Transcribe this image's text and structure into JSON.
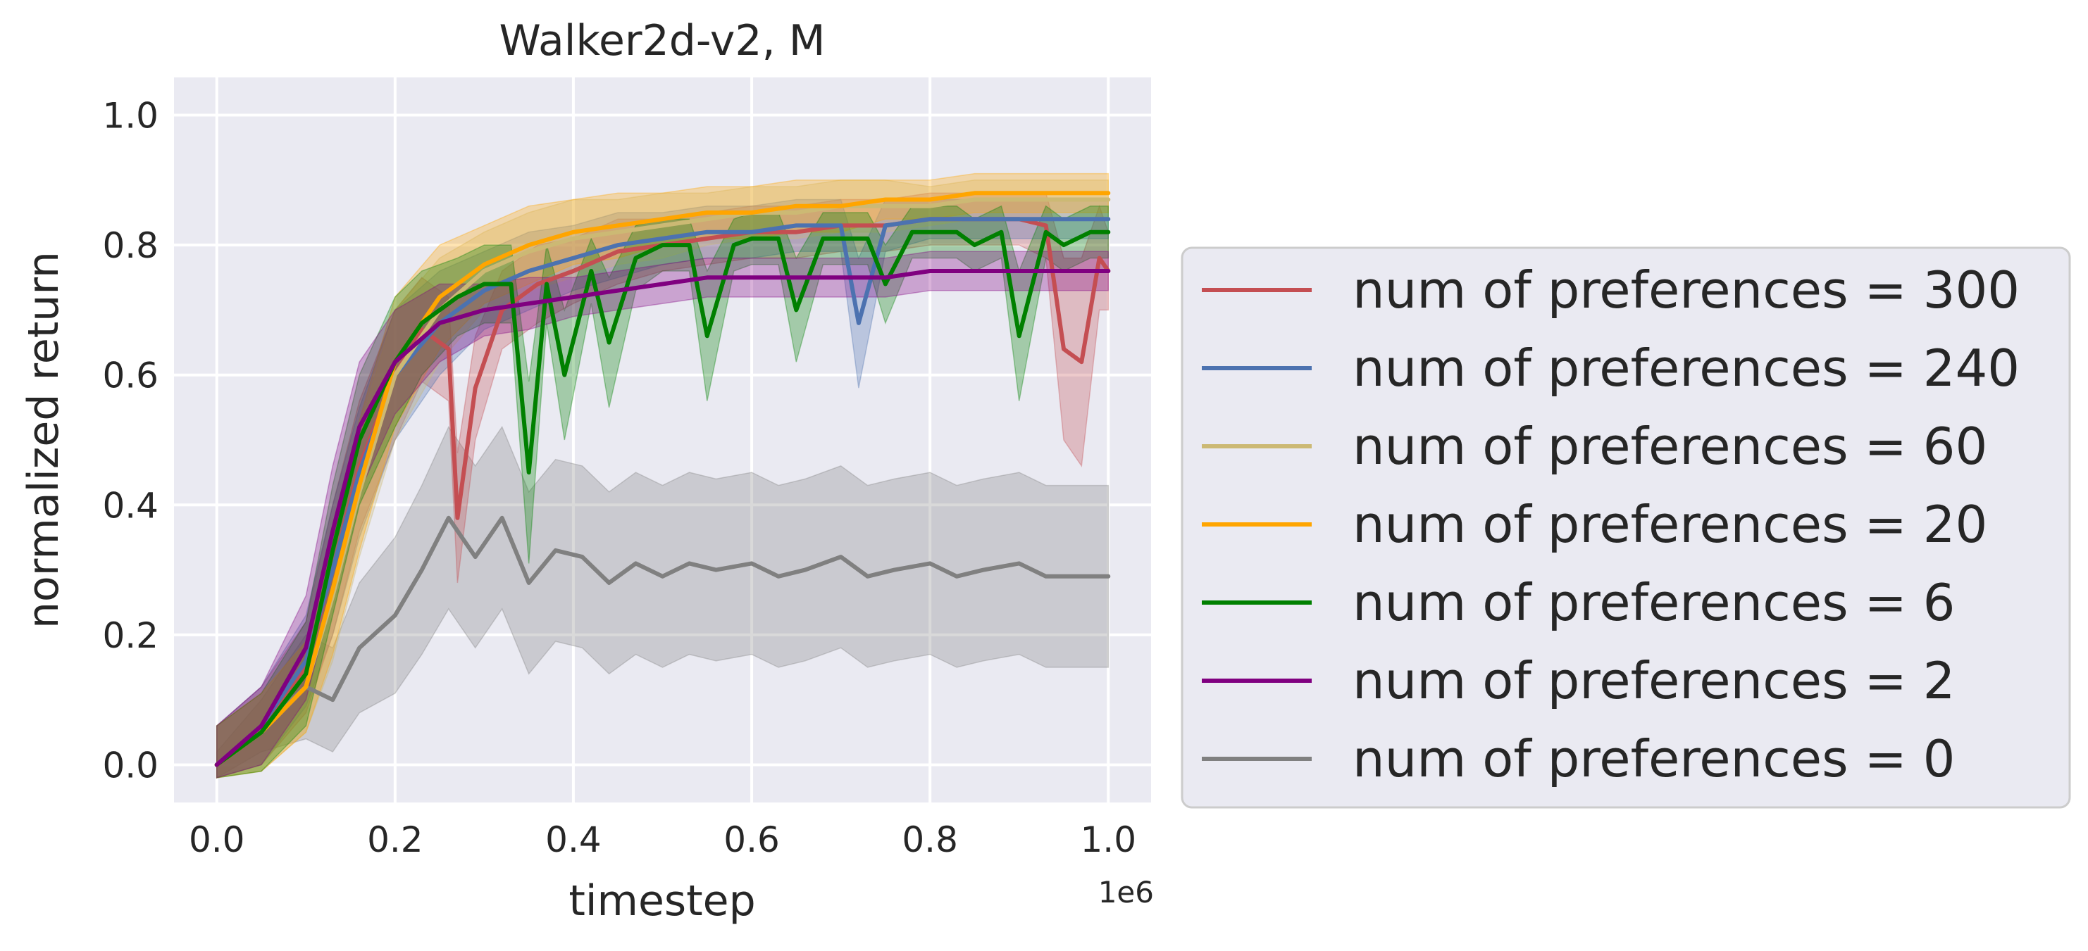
{
  "chart_data": {
    "type": "line",
    "title": "Walker2d-v2, M",
    "xlabel": "timestep",
    "ylabel": "normalized return",
    "x_offset_label": "1e6",
    "xlim": [
      -0.048,
      1.048
    ],
    "ylim": [
      -0.058,
      1.058
    ],
    "x_ticks": [
      0.0,
      0.2,
      0.4,
      0.6,
      0.8,
      1.0
    ],
    "x_tick_labels": [
      "0.0",
      "0.2",
      "0.4",
      "0.6",
      "0.8",
      "1.0"
    ],
    "y_ticks": [
      0.0,
      0.2,
      0.4,
      0.6,
      0.8,
      1.0
    ],
    "y_tick_labels": [
      "0.0",
      "0.2",
      "0.4",
      "0.6",
      "0.8",
      "1.0"
    ],
    "grid": true,
    "legend_position": "right, outside plot",
    "series": [
      {
        "name": "num of preferences = 300",
        "color": "#c44e52",
        "x": [
          0.0,
          0.05,
          0.1,
          0.13,
          0.16,
          0.2,
          0.23,
          0.26,
          0.27,
          0.29,
          0.32,
          0.36,
          0.4,
          0.45,
          0.5,
          0.55,
          0.6,
          0.65,
          0.7,
          0.75,
          0.8,
          0.85,
          0.9,
          0.93,
          0.95,
          0.97,
          0.99,
          1.0
        ],
        "y": [
          0.0,
          0.06,
          0.15,
          0.3,
          0.46,
          0.6,
          0.67,
          0.64,
          0.38,
          0.58,
          0.7,
          0.74,
          0.76,
          0.79,
          0.8,
          0.81,
          0.82,
          0.82,
          0.83,
          0.83,
          0.84,
          0.84,
          0.84,
          0.83,
          0.64,
          0.62,
          0.78,
          0.76
        ],
        "band": [
          0.06,
          0.06,
          0.07,
          0.1,
          0.1,
          0.1,
          0.08,
          0.08,
          0.1,
          0.08,
          0.06,
          0.06,
          0.05,
          0.05,
          0.04,
          0.04,
          0.04,
          0.04,
          0.04,
          0.04,
          0.04,
          0.04,
          0.04,
          0.05,
          0.14,
          0.16,
          0.08,
          0.06
        ]
      },
      {
        "name": "num of preferences = 240",
        "color": "#4c72b0",
        "x": [
          0.0,
          0.05,
          0.1,
          0.13,
          0.16,
          0.2,
          0.25,
          0.3,
          0.35,
          0.4,
          0.45,
          0.5,
          0.55,
          0.6,
          0.65,
          0.7,
          0.72,
          0.75,
          0.8,
          0.85,
          0.9,
          0.95,
          1.0
        ],
        "y": [
          0.0,
          0.06,
          0.16,
          0.3,
          0.45,
          0.6,
          0.68,
          0.73,
          0.76,
          0.78,
          0.8,
          0.81,
          0.82,
          0.82,
          0.83,
          0.83,
          0.68,
          0.83,
          0.84,
          0.84,
          0.84,
          0.84,
          0.84
        ],
        "band": [
          0.06,
          0.06,
          0.07,
          0.1,
          0.1,
          0.1,
          0.08,
          0.06,
          0.06,
          0.05,
          0.05,
          0.04,
          0.04,
          0.04,
          0.04,
          0.04,
          0.1,
          0.04,
          0.03,
          0.03,
          0.03,
          0.03,
          0.03
        ]
      },
      {
        "name": "num of preferences = 60",
        "color": "#ccb974",
        "x": [
          0.0,
          0.05,
          0.1,
          0.13,
          0.16,
          0.2,
          0.25,
          0.3,
          0.35,
          0.4,
          0.45,
          0.5,
          0.55,
          0.6,
          0.65,
          0.7,
          0.75,
          0.8,
          0.85,
          0.9,
          0.95,
          1.0
        ],
        "y": [
          0.0,
          0.05,
          0.12,
          0.26,
          0.42,
          0.6,
          0.7,
          0.76,
          0.79,
          0.81,
          0.82,
          0.83,
          0.84,
          0.85,
          0.85,
          0.86,
          0.86,
          0.86,
          0.87,
          0.87,
          0.87,
          0.87
        ],
        "band": [
          0.06,
          0.06,
          0.07,
          0.1,
          0.1,
          0.1,
          0.08,
          0.06,
          0.06,
          0.06,
          0.05,
          0.05,
          0.04,
          0.04,
          0.04,
          0.04,
          0.04,
          0.03,
          0.03,
          0.03,
          0.03,
          0.03
        ]
      },
      {
        "name": "num of preferences = 20",
        "color": "#ffa500",
        "x": [
          0.0,
          0.05,
          0.1,
          0.13,
          0.16,
          0.2,
          0.25,
          0.3,
          0.35,
          0.4,
          0.45,
          0.5,
          0.55,
          0.6,
          0.65,
          0.7,
          0.75,
          0.8,
          0.85,
          0.9,
          0.95,
          1.0
        ],
        "y": [
          0.0,
          0.05,
          0.12,
          0.27,
          0.43,
          0.62,
          0.72,
          0.77,
          0.8,
          0.82,
          0.83,
          0.84,
          0.85,
          0.85,
          0.86,
          0.86,
          0.87,
          0.87,
          0.88,
          0.88,
          0.88,
          0.88
        ],
        "band": [
          0.06,
          0.06,
          0.07,
          0.1,
          0.1,
          0.1,
          0.08,
          0.06,
          0.06,
          0.05,
          0.05,
          0.04,
          0.04,
          0.04,
          0.04,
          0.04,
          0.03,
          0.03,
          0.03,
          0.03,
          0.03,
          0.03
        ]
      },
      {
        "name": "num of preferences = 6",
        "color": "#008000",
        "x": [
          0.0,
          0.05,
          0.1,
          0.13,
          0.16,
          0.2,
          0.23,
          0.27,
          0.3,
          0.33,
          0.35,
          0.37,
          0.39,
          0.42,
          0.44,
          0.47,
          0.5,
          0.53,
          0.55,
          0.58,
          0.6,
          0.63,
          0.65,
          0.68,
          0.7,
          0.73,
          0.75,
          0.78,
          0.8,
          0.83,
          0.85,
          0.88,
          0.9,
          0.93,
          0.95,
          0.98,
          1.0
        ],
        "y": [
          0.0,
          0.05,
          0.14,
          0.33,
          0.5,
          0.62,
          0.68,
          0.72,
          0.74,
          0.74,
          0.45,
          0.74,
          0.6,
          0.76,
          0.65,
          0.78,
          0.8,
          0.8,
          0.66,
          0.8,
          0.81,
          0.81,
          0.7,
          0.81,
          0.81,
          0.81,
          0.74,
          0.82,
          0.82,
          0.82,
          0.8,
          0.82,
          0.66,
          0.82,
          0.8,
          0.82,
          0.82
        ],
        "band": [
          0.06,
          0.06,
          0.08,
          0.1,
          0.1,
          0.1,
          0.08,
          0.06,
          0.06,
          0.06,
          0.14,
          0.06,
          0.1,
          0.05,
          0.1,
          0.05,
          0.04,
          0.04,
          0.1,
          0.04,
          0.04,
          0.04,
          0.08,
          0.04,
          0.04,
          0.04,
          0.06,
          0.04,
          0.04,
          0.04,
          0.04,
          0.04,
          0.1,
          0.04,
          0.04,
          0.04,
          0.04
        ]
      },
      {
        "name": "num of preferences = 2",
        "color": "#800080",
        "x": [
          0.0,
          0.05,
          0.1,
          0.13,
          0.16,
          0.2,
          0.25,
          0.3,
          0.35,
          0.4,
          0.45,
          0.5,
          0.55,
          0.6,
          0.65,
          0.7,
          0.75,
          0.8,
          0.85,
          0.9,
          0.95,
          1.0
        ],
        "y": [
          0.0,
          0.06,
          0.18,
          0.36,
          0.52,
          0.62,
          0.68,
          0.7,
          0.71,
          0.72,
          0.73,
          0.74,
          0.75,
          0.75,
          0.75,
          0.75,
          0.75,
          0.76,
          0.76,
          0.76,
          0.76,
          0.76
        ],
        "band": [
          0.06,
          0.06,
          0.08,
          0.1,
          0.1,
          0.08,
          0.06,
          0.04,
          0.04,
          0.03,
          0.03,
          0.03,
          0.03,
          0.03,
          0.03,
          0.03,
          0.03,
          0.03,
          0.03,
          0.03,
          0.03,
          0.03
        ]
      },
      {
        "name": "num of preferences = 0",
        "color": "#808080",
        "x": [
          0.0,
          0.05,
          0.1,
          0.13,
          0.16,
          0.2,
          0.23,
          0.26,
          0.29,
          0.32,
          0.35,
          0.38,
          0.41,
          0.44,
          0.47,
          0.5,
          0.53,
          0.56,
          0.6,
          0.63,
          0.66,
          0.7,
          0.73,
          0.76,
          0.8,
          0.83,
          0.86,
          0.9,
          0.93,
          0.96,
          1.0
        ],
        "y": [
          0.0,
          0.06,
          0.12,
          0.1,
          0.18,
          0.23,
          0.3,
          0.38,
          0.32,
          0.38,
          0.28,
          0.33,
          0.32,
          0.28,
          0.31,
          0.29,
          0.31,
          0.3,
          0.31,
          0.29,
          0.3,
          0.32,
          0.29,
          0.3,
          0.31,
          0.29,
          0.3,
          0.31,
          0.29,
          0.29,
          0.29
        ],
        "band": [
          0.02,
          0.04,
          0.08,
          0.08,
          0.1,
          0.12,
          0.13,
          0.14,
          0.14,
          0.14,
          0.14,
          0.14,
          0.14,
          0.14,
          0.14,
          0.14,
          0.14,
          0.14,
          0.14,
          0.14,
          0.14,
          0.14,
          0.14,
          0.14,
          0.14,
          0.14,
          0.14,
          0.14,
          0.14,
          0.14,
          0.14
        ]
      }
    ]
  }
}
